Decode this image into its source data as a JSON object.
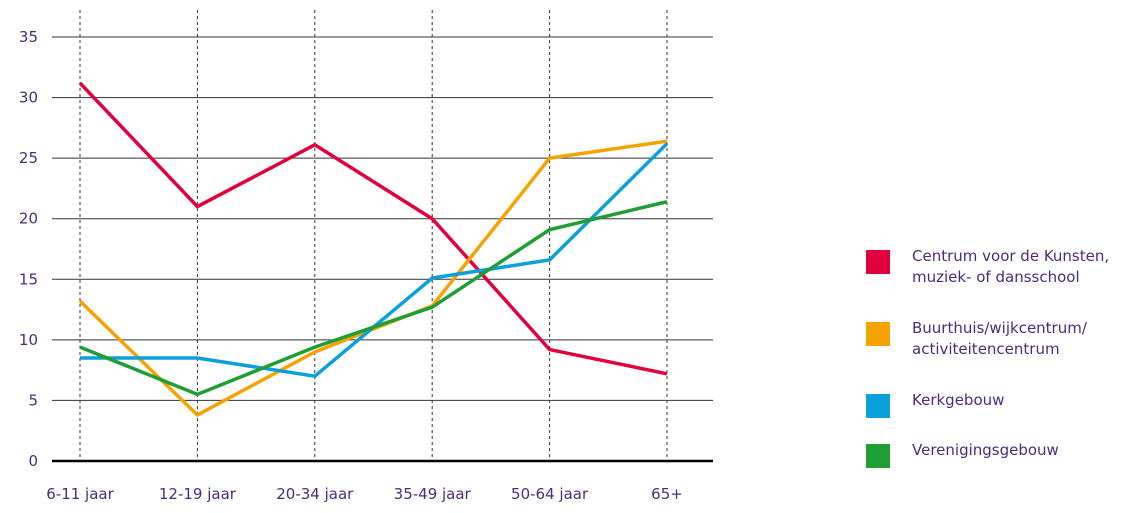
{
  "chart_data": {
    "type": "line",
    "title": "",
    "xlabel": "",
    "ylabel": "",
    "categories": [
      "6-11 jaar",
      "12-19 jaar",
      "20-34 jaar",
      "35-49 jaar",
      "50-64 jaar",
      "65+"
    ],
    "yticks": [
      "0",
      "5",
      "10",
      "15",
      "20",
      "25",
      "30",
      "35"
    ],
    "ylim": [
      0,
      35
    ],
    "grid": {
      "horizontal": true,
      "vertical_dashed": true
    },
    "legend_position": "right",
    "series": [
      {
        "name": "Centrum voor de Kunsten,\nmuziek- of dansschool",
        "color": "#e2003c",
        "values": [
          31.2,
          21.0,
          26.1,
          20.0,
          9.2,
          7.2
        ]
      },
      {
        "name": "Buurthuis/wijkcentrum/\nactiviteitencentrum",
        "color": "#f5a300",
        "values": [
          13.2,
          3.8,
          9.0,
          12.8,
          25.0,
          26.4
        ]
      },
      {
        "name": "Kerkgebouw",
        "color": "#0aa0dc",
        "values": [
          8.5,
          8.5,
          7.0,
          15.1,
          16.6,
          26.2
        ]
      },
      {
        "name": "Verenigingsgebouw",
        "color": "#1e9e35",
        "values": [
          9.4,
          5.5,
          9.4,
          12.7,
          19.1,
          21.4
        ]
      }
    ]
  }
}
